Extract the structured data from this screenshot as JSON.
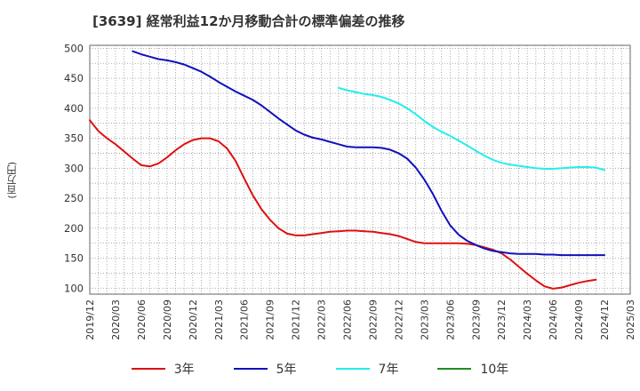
{
  "title": "[3639]  経常利益12か月移動合計の標準偏差の推移",
  "chart_data": {
    "type": "line",
    "title": "[3639]  経常利益12か月移動合計の標準偏差の推移",
    "ylabel": "(百万円)",
    "xlabel": "",
    "ylim": [
      90,
      505
    ],
    "yticks": [
      100,
      150,
      200,
      250,
      300,
      350,
      400,
      450,
      500
    ],
    "xticks": [
      "2019/12",
      "2020/03",
      "2020/06",
      "2020/09",
      "2020/12",
      "2021/03",
      "2021/06",
      "2021/09",
      "2021/12",
      "2022/03",
      "2022/06",
      "2022/09",
      "2022/12",
      "2023/03",
      "2023/06",
      "2023/09",
      "2023/12",
      "2024/03",
      "2024/06",
      "2024/09",
      "2024/12",
      "2025/03"
    ],
    "grid": true,
    "legend_position": "bottom",
    "series": [
      {
        "name": "3年",
        "color": "#dd1111",
        "points": [
          [
            "2019/12",
            380
          ],
          [
            "2020/01",
            362
          ],
          [
            "2020/02",
            350
          ],
          [
            "2020/03",
            340
          ],
          [
            "2020/04",
            328
          ],
          [
            "2020/05",
            316
          ],
          [
            "2020/06",
            305
          ],
          [
            "2020/07",
            303
          ],
          [
            "2020/08",
            308
          ],
          [
            "2020/09",
            318
          ],
          [
            "2020/10",
            330
          ],
          [
            "2020/11",
            340
          ],
          [
            "2020/12",
            347
          ],
          [
            "2021/01",
            350
          ],
          [
            "2021/02",
            350
          ],
          [
            "2021/03",
            345
          ],
          [
            "2021/04",
            333
          ],
          [
            "2021/05",
            312
          ],
          [
            "2021/06",
            283
          ],
          [
            "2021/07",
            255
          ],
          [
            "2021/08",
            232
          ],
          [
            "2021/09",
            214
          ],
          [
            "2021/10",
            200
          ],
          [
            "2021/11",
            191
          ],
          [
            "2021/12",
            188
          ],
          [
            "2022/01",
            188
          ],
          [
            "2022/02",
            190
          ],
          [
            "2022/03",
            192
          ],
          [
            "2022/04",
            194
          ],
          [
            "2022/05",
            195
          ],
          [
            "2022/06",
            196
          ],
          [
            "2022/07",
            196
          ],
          [
            "2022/08",
            195
          ],
          [
            "2022/09",
            194
          ],
          [
            "2022/10",
            192
          ],
          [
            "2022/11",
            190
          ],
          [
            "2022/12",
            187
          ],
          [
            "2023/01",
            182
          ],
          [
            "2023/02",
            177
          ],
          [
            "2023/03",
            175
          ],
          [
            "2023/04",
            175
          ],
          [
            "2023/05",
            175
          ],
          [
            "2023/06",
            175
          ],
          [
            "2023/07",
            175
          ],
          [
            "2023/08",
            174
          ],
          [
            "2023/09",
            172
          ],
          [
            "2023/10",
            168
          ],
          [
            "2023/11",
            164
          ],
          [
            "2023/12",
            158
          ],
          [
            "2024/01",
            148
          ],
          [
            "2024/02",
            136
          ],
          [
            "2024/03",
            124
          ],
          [
            "2024/04",
            113
          ],
          [
            "2024/05",
            103
          ],
          [
            "2024/06",
            99
          ],
          [
            "2024/07",
            101
          ],
          [
            "2024/08",
            105
          ],
          [
            "2024/09",
            109
          ],
          [
            "2024/10",
            112
          ],
          [
            "2024/11",
            114
          ]
        ]
      },
      {
        "name": "5年",
        "color": "#1111bb",
        "points": [
          [
            "2020/05",
            495
          ],
          [
            "2020/06",
            490
          ],
          [
            "2020/07",
            486
          ],
          [
            "2020/08",
            482
          ],
          [
            "2020/09",
            480
          ],
          [
            "2020/10",
            477
          ],
          [
            "2020/11",
            473
          ],
          [
            "2020/12",
            467
          ],
          [
            "2021/01",
            461
          ],
          [
            "2021/02",
            453
          ],
          [
            "2021/03",
            444
          ],
          [
            "2021/04",
            436
          ],
          [
            "2021/05",
            428
          ],
          [
            "2021/06",
            421
          ],
          [
            "2021/07",
            414
          ],
          [
            "2021/08",
            405
          ],
          [
            "2021/09",
            394
          ],
          [
            "2021/10",
            383
          ],
          [
            "2021/11",
            373
          ],
          [
            "2021/12",
            363
          ],
          [
            "2022/01",
            356
          ],
          [
            "2022/02",
            351
          ],
          [
            "2022/03",
            348
          ],
          [
            "2022/04",
            344
          ],
          [
            "2022/05",
            340
          ],
          [
            "2022/06",
            336
          ],
          [
            "2022/07",
            335
          ],
          [
            "2022/08",
            335
          ],
          [
            "2022/09",
            335
          ],
          [
            "2022/10",
            334
          ],
          [
            "2022/11",
            331
          ],
          [
            "2022/12",
            325
          ],
          [
            "2023/01",
            316
          ],
          [
            "2023/02",
            301
          ],
          [
            "2023/03",
            281
          ],
          [
            "2023/04",
            257
          ],
          [
            "2023/05",
            229
          ],
          [
            "2023/06",
            205
          ],
          [
            "2023/07",
            189
          ],
          [
            "2023/08",
            179
          ],
          [
            "2023/09",
            172
          ],
          [
            "2023/10",
            166
          ],
          [
            "2023/11",
            162
          ],
          [
            "2023/12",
            160
          ],
          [
            "2024/01",
            158
          ],
          [
            "2024/02",
            157
          ],
          [
            "2024/03",
            157
          ],
          [
            "2024/04",
            157
          ],
          [
            "2024/05",
            156
          ],
          [
            "2024/06",
            156
          ],
          [
            "2024/07",
            155
          ],
          [
            "2024/08",
            155
          ],
          [
            "2024/09",
            155
          ],
          [
            "2024/10",
            155
          ],
          [
            "2024/11",
            155
          ],
          [
            "2024/12",
            155
          ]
        ]
      },
      {
        "name": "7年",
        "color": "#22eeee",
        "points": [
          [
            "2022/05",
            434
          ],
          [
            "2022/06",
            430
          ],
          [
            "2022/07",
            427
          ],
          [
            "2022/08",
            424
          ],
          [
            "2022/09",
            422
          ],
          [
            "2022/10",
            419
          ],
          [
            "2022/11",
            414
          ],
          [
            "2022/12",
            408
          ],
          [
            "2023/01",
            400
          ],
          [
            "2023/02",
            390
          ],
          [
            "2023/03",
            379
          ],
          [
            "2023/04",
            369
          ],
          [
            "2023/05",
            361
          ],
          [
            "2023/06",
            354
          ],
          [
            "2023/07",
            346
          ],
          [
            "2023/08",
            338
          ],
          [
            "2023/09",
            329
          ],
          [
            "2023/10",
            321
          ],
          [
            "2023/11",
            314
          ],
          [
            "2023/12",
            309
          ],
          [
            "2024/01",
            306
          ],
          [
            "2024/02",
            304
          ],
          [
            "2024/03",
            302
          ],
          [
            "2024/04",
            300
          ],
          [
            "2024/05",
            299
          ],
          [
            "2024/06",
            299
          ],
          [
            "2024/07",
            300
          ],
          [
            "2024/08",
            301
          ],
          [
            "2024/09",
            302
          ],
          [
            "2024/10",
            302
          ],
          [
            "2024/11",
            301
          ],
          [
            "2024/12",
            297
          ]
        ]
      },
      {
        "name": "10年",
        "color": "#228b22",
        "points": []
      }
    ]
  }
}
